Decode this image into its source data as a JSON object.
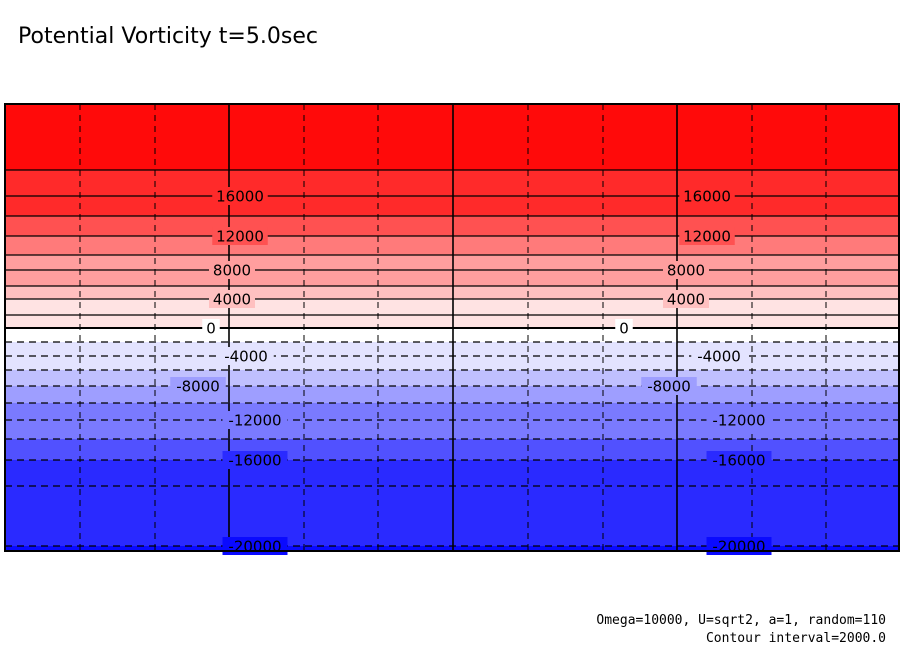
{
  "chart_data": {
    "type": "heatmap",
    "title": "Potential Vorticity t=5.0sec",
    "variable": "Potential Vorticity",
    "time": "5.0sec",
    "colormap": "blue-white-red",
    "color_low": "#0a0aff",
    "color_mid": "#ffffff",
    "color_high": "#ff0a0a",
    "fill_bands_top_to_bottom": [
      "#ff0a0a",
      "#ff2a2a",
      "#ff5151",
      "#ff7a7a",
      "#ff9e9e",
      "#ffc0c0",
      "#ffe3e3",
      "#ffffff",
      "#e3e3ff",
      "#c0c0ff",
      "#9e9eff",
      "#7a7aff",
      "#5151ff",
      "#2a2aff",
      "#0a0aff"
    ],
    "contour_interval": 2000.0,
    "contour_levels": [
      18000,
      16000,
      14000,
      12000,
      10000,
      8000,
      6000,
      4000,
      2000,
      0,
      -2000,
      -4000,
      -6000,
      -8000,
      -10000,
      -12000,
      -14000,
      -16000,
      -18000,
      -20000
    ],
    "labeled_contours": [
      {
        "value": 16000,
        "text": "16000"
      },
      {
        "value": 12000,
        "text": "12000"
      },
      {
        "value": 8000,
        "text": "8000"
      },
      {
        "value": 4000,
        "text": "4000"
      },
      {
        "value": 0,
        "text": "0"
      },
      {
        "value": -4000,
        "text": "-4000"
      },
      {
        "value": -8000,
        "text": "-8000"
      },
      {
        "value": -12000,
        "text": "-12000"
      },
      {
        "value": -16000,
        "text": "-16000"
      },
      {
        "value": -20000,
        "text": "-20000"
      }
    ],
    "negative_contours_dashed": true,
    "grid": true,
    "grid_style": "dashed",
    "x_panels": 2
  },
  "footer": {
    "params": "Omega=10000, U=sqrt2, a=1, random=110",
    "interval_note": "Contour interval=2000.0"
  }
}
